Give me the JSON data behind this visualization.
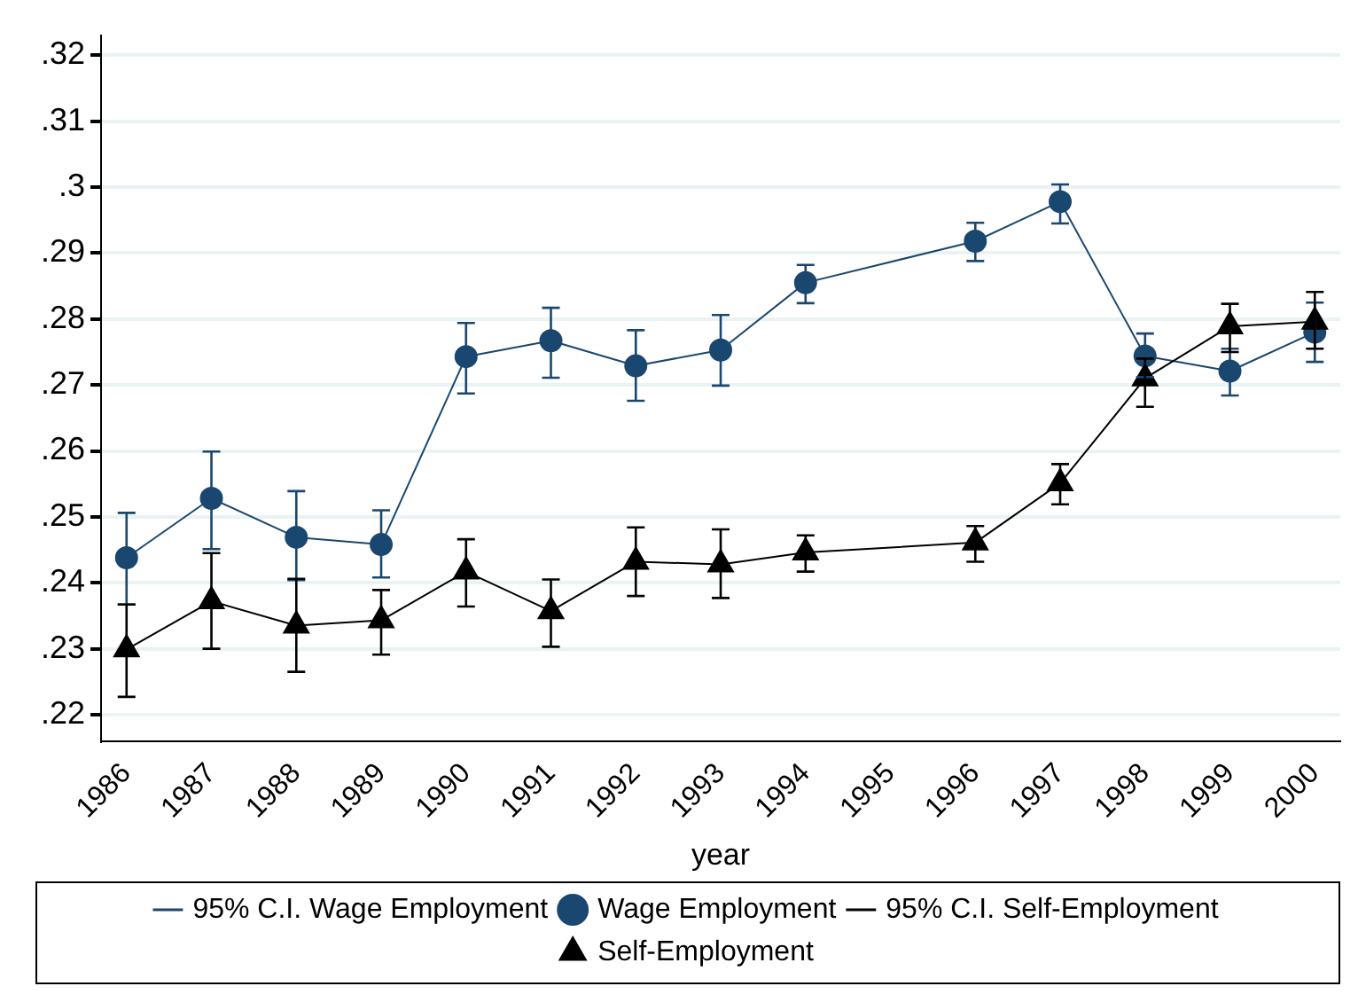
{
  "chart_data": {
    "type": "line",
    "xlabel": "year",
    "x": [
      1986,
      1987,
      1988,
      1989,
      1990,
      1991,
      1992,
      1993,
      1994,
      1996,
      1997,
      1998,
      1999,
      2000
    ],
    "xlim": [
      1985.7,
      2000.3
    ],
    "xticks": [
      1986,
      1987,
      1988,
      1989,
      1990,
      1991,
      1992,
      1993,
      1994,
      1995,
      1996,
      1997,
      1998,
      1999,
      2000
    ],
    "ylim": [
      0.216,
      0.323
    ],
    "yticks": [
      {
        "value": 0.22,
        "label": ".22"
      },
      {
        "value": 0.23,
        "label": ".23"
      },
      {
        "value": 0.24,
        "label": ".24"
      },
      {
        "value": 0.25,
        "label": ".25"
      },
      {
        "value": 0.26,
        "label": ".26"
      },
      {
        "value": 0.27,
        "label": ".27"
      },
      {
        "value": 0.28,
        "label": ".28"
      },
      {
        "value": 0.29,
        "label": ".29"
      },
      {
        "value": 0.3,
        "label": ".3"
      },
      {
        "value": 0.31,
        "label": ".31"
      },
      {
        "value": 0.32,
        "label": ".32"
      }
    ],
    "grid": "y",
    "legend": "bottom",
    "annotations": [
      "95% C.I. Wage Employment",
      "95% C.I. Self-Employment"
    ],
    "series": [
      {
        "name": "Wage Employment",
        "color": "#1a476f",
        "marker": "circle",
        "values": [
          0.2438,
          0.2528,
          0.2469,
          0.2458,
          0.2743,
          0.2767,
          0.2729,
          0.2753,
          0.2855,
          0.2918,
          0.2978,
          0.2744,
          0.2721,
          0.278
        ],
        "errors": [
          [
            0.2367,
            0.2506
          ],
          [
            0.2451,
            0.2599
          ],
          [
            0.2404,
            0.2539
          ],
          [
            0.2408,
            0.251
          ],
          [
            0.2687,
            0.2794
          ],
          [
            0.2711,
            0.2817
          ],
          [
            0.2676,
            0.2783
          ],
          [
            0.2699,
            0.2806
          ],
          [
            0.2824,
            0.2882
          ],
          [
            0.2888,
            0.2946
          ],
          [
            0.2945,
            0.3004
          ],
          [
            0.2712,
            0.2778
          ],
          [
            0.2684,
            0.2755
          ],
          [
            0.2735,
            0.2825
          ]
        ]
      },
      {
        "name": "Self-Employment",
        "color": "#000000",
        "marker": "triangle",
        "values": [
          0.2299,
          0.2372,
          0.2335,
          0.2343,
          0.2417,
          0.2357,
          0.2432,
          0.2428,
          0.2446,
          0.2461,
          0.2551,
          0.271,
          0.2789,
          0.2796
        ],
        "errors": [
          [
            0.2227,
            0.2367
          ],
          [
            0.23,
            0.2445
          ],
          [
            0.2265,
            0.2406
          ],
          [
            0.2291,
            0.2389
          ],
          [
            0.2364,
            0.2466
          ],
          [
            0.2303,
            0.2405
          ],
          [
            0.238,
            0.2484
          ],
          [
            0.2377,
            0.2481
          ],
          [
            0.2417,
            0.2472
          ],
          [
            0.2432,
            0.2486
          ],
          [
            0.2519,
            0.258
          ],
          [
            0.2667,
            0.274
          ],
          [
            0.275,
            0.2823
          ],
          [
            0.2755,
            0.2841
          ]
        ]
      }
    ]
  }
}
